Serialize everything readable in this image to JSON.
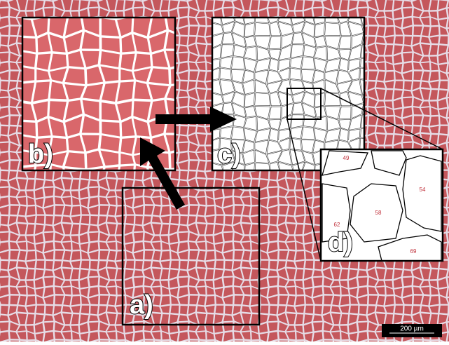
{
  "panels": {
    "a": "a)",
    "b": "b)",
    "c": "c)",
    "d": "d)"
  },
  "cell_numbers": [
    "49",
    "54",
    "58",
    "62",
    "69"
  ],
  "scale_bar": "200 µm"
}
